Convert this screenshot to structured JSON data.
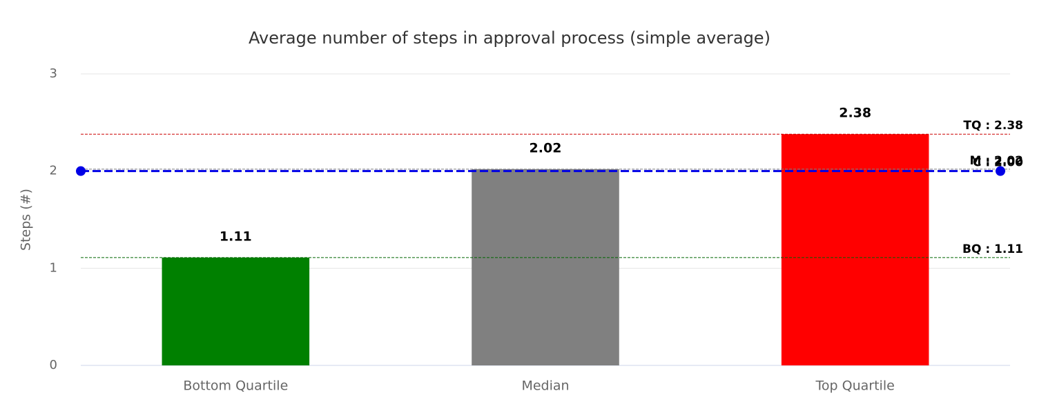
{
  "chart_data": {
    "type": "bar",
    "title": "Average number of steps in approval process (simple average)",
    "y_label": "Steps (#)",
    "categories": [
      "Bottom Quartile",
      "Median",
      "Top Quartile"
    ],
    "values": [
      1.11,
      2.02,
      2.38
    ],
    "colors": [
      "#008000",
      "#808080",
      "#ff0000"
    ],
    "ylim": [
      0,
      3
    ],
    "yticks": [
      0,
      1,
      2,
      3
    ],
    "grid": true,
    "reference_lines": [
      {
        "label": "TQ : 2.38",
        "value": 2.38,
        "color": "#cc0000",
        "markers": false
      },
      {
        "label": "M : 2.02",
        "value": 2.02,
        "color": "#808080",
        "markers": false
      },
      {
        "label": "C : 2.00",
        "value": 2.0,
        "color": "#0000e6",
        "markers": true
      },
      {
        "label": "BQ : 1.11",
        "value": 1.11,
        "color": "#006600",
        "markers": false
      }
    ]
  }
}
